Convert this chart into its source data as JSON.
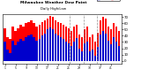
{
  "title1": "Milwaukee Weather Dew Point",
  "title2": "Daily High/Low",
  "ylim": [
    -5,
    75
  ],
  "yticks": [
    0,
    10,
    20,
    30,
    40,
    50,
    60,
    70
  ],
  "bar_color_high": "#ff0000",
  "bar_color_low": "#0000cc",
  "background_color": "#ffffff",
  "legend_high": "High",
  "legend_low": "Low",
  "highs": [
    52,
    38,
    35,
    55,
    48,
    52,
    58,
    55,
    60,
    62,
    65,
    60,
    55,
    58,
    62,
    65,
    68,
    72,
    70,
    65,
    62,
    60,
    58,
    55,
    52,
    48,
    55,
    58,
    42,
    38,
    50,
    55,
    38,
    42,
    30,
    45,
    65,
    70,
    68,
    55,
    50,
    60,
    55,
    48
  ],
  "lows": [
    30,
    18,
    12,
    32,
    25,
    30,
    35,
    32,
    38,
    40,
    42,
    38,
    32,
    35,
    40,
    44,
    50,
    54,
    50,
    44,
    40,
    38,
    35,
    30,
    28,
    24,
    30,
    36,
    20,
    15,
    28,
    30,
    15,
    18,
    8,
    22,
    42,
    48,
    44,
    32,
    26,
    38,
    30,
    24
  ],
  "dashed_vlines": [
    24.5,
    29.5,
    34.5
  ],
  "num_bars": 44,
  "bar_width": 0.85
}
